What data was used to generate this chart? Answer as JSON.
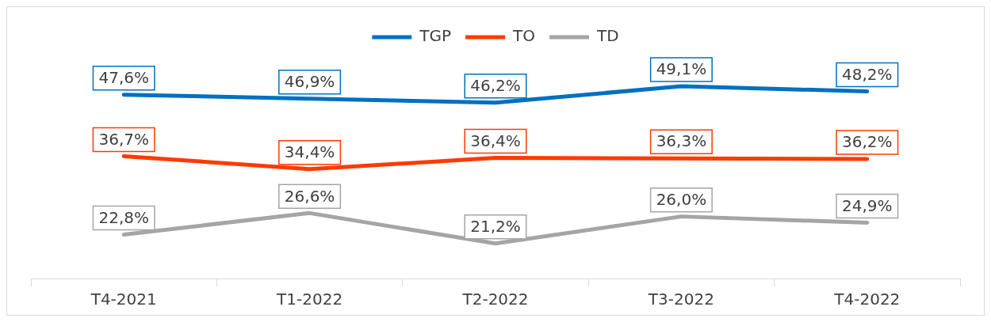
{
  "chart_data": {
    "type": "line",
    "categories": [
      "T4-2021",
      "T1-2022",
      "T2-2022",
      "T3-2022",
      "T4-2022"
    ],
    "legend": "top",
    "marker": "none",
    "series": [
      {
        "name": "TGP",
        "color": "#0070c0",
        "values": [
          47.6,
          46.9,
          46.2,
          49.1,
          48.2
        ],
        "value_labels": [
          "47,6%",
          "46,9%",
          "46,2%",
          "49,1%",
          "48,2%"
        ]
      },
      {
        "name": "TO",
        "color": "#ff3a00",
        "values": [
          36.7,
          34.4,
          36.4,
          36.3,
          36.2
        ],
        "value_labels": [
          "36,7%",
          "34,4%",
          "36,4%",
          "36,3%",
          "36,2%"
        ]
      },
      {
        "name": "TD",
        "color": "#a5a5a5",
        "values": [
          22.8,
          26.6,
          21.2,
          26.0,
          24.9
        ],
        "value_labels": [
          "22,8%",
          "26,6%",
          "21,2%",
          "26,0%",
          "24,9%"
        ]
      }
    ]
  }
}
